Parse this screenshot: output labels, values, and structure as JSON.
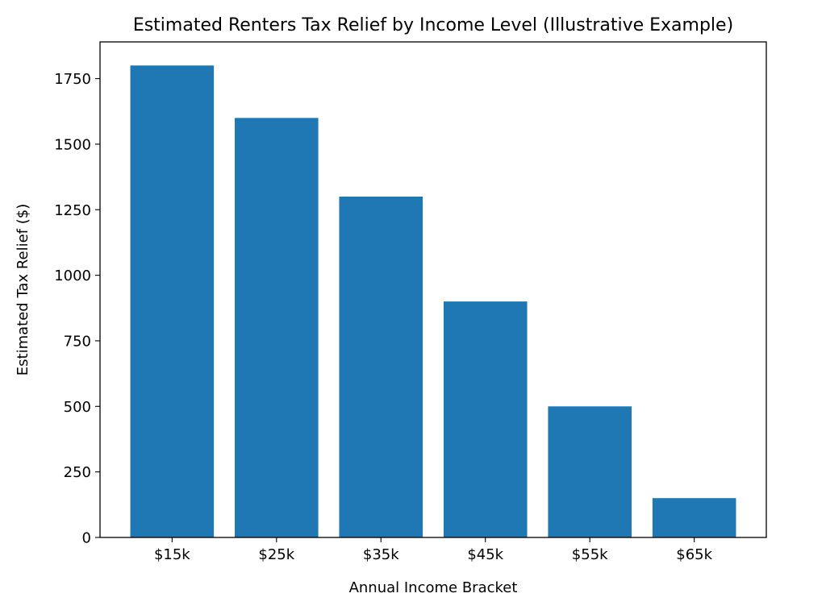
{
  "chart_data": {
    "type": "bar",
    "title": "Estimated Renters Tax Relief by Income Level (Illustrative Example)",
    "xlabel": "Annual Income Bracket",
    "ylabel": "Estimated Tax Relief ($)",
    "categories": [
      "$15k",
      "$25k",
      "$35k",
      "$45k",
      "$55k",
      "$65k"
    ],
    "values": [
      1800,
      1600,
      1300,
      900,
      500,
      150
    ],
    "ylim": [
      0,
      1890
    ],
    "yticks": [
      0,
      250,
      500,
      750,
      1000,
      1250,
      1500,
      1750
    ],
    "grid": false,
    "bar_color": "#1f77b4"
  }
}
